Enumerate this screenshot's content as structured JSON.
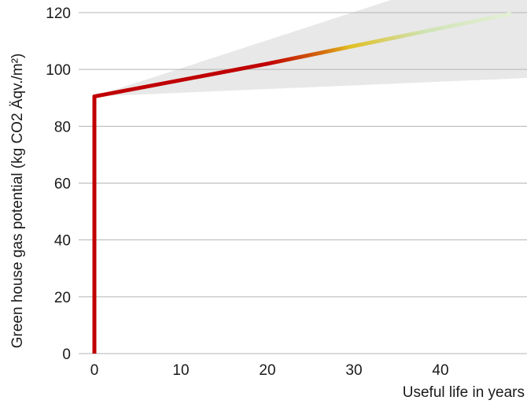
{
  "chart_data": {
    "type": "line",
    "title": "",
    "xlabel": "Useful life in years",
    "ylabel": "Green house gas potential (kg CO2 Äqv./m²)",
    "xlim": [
      0,
      50
    ],
    "ylim": [
      0,
      120
    ],
    "x_ticks": [
      0,
      10,
      20,
      30,
      40
    ],
    "y_ticks": [
      0,
      20,
      40,
      60,
      80,
      100,
      120
    ],
    "grid": "horizontal",
    "series": [
      {
        "points": [
          {
            "x": 0,
            "y": 0
          },
          {
            "x": 0,
            "y": 90.5
          },
          {
            "x": 20,
            "y": 102
          },
          {
            "x": 48,
            "y": 119.5
          }
        ],
        "color_gradient": [
          "#c00000",
          "#c00000",
          "#d46a0c",
          "#e0c024",
          "#cfe3b4",
          "#e3efd6"
        ]
      }
    ],
    "uncertainty_band": {
      "x_start": 0,
      "y_start": 90.5,
      "upper_end": {
        "x": 50,
        "y": 140
      },
      "lower_end": {
        "x": 50,
        "y": 97
      },
      "color": "#e8e8e8"
    },
    "colors": {
      "grid": "#b5b5b5",
      "line_start": "#c00000"
    }
  }
}
